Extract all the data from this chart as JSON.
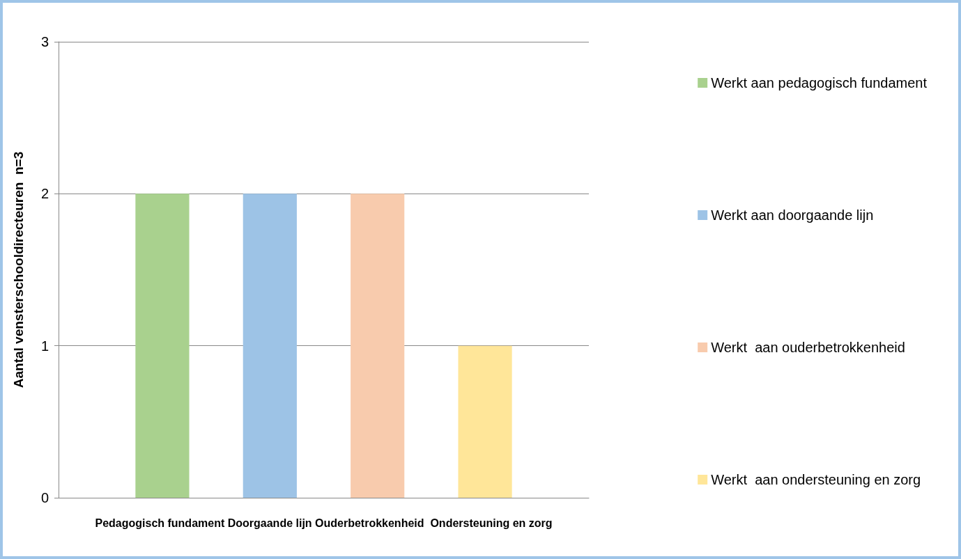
{
  "chart_data": {
    "type": "bar",
    "categories": [
      "Pedagogisch fundament Doorgaande lijn Ouderbetrokkenheid  Ondersteuning en zorg"
    ],
    "ylabel": "Aantal vensterschooldirecteuren  n=3",
    "series": [
      {
        "name": "Werkt aan pedagogisch fundament",
        "color": "#a9d18e",
        "values": [
          2
        ]
      },
      {
        "name": "Werkt aan doorgaande lijn",
        "color": "#9dc3e6",
        "values": [
          2
        ]
      },
      {
        "name": "Werkt  aan ouderbetrokkenheid",
        "color": "#f8cbad",
        "values": [
          2
        ]
      },
      {
        "name": "Werkt  aan ondersteuning en zorg",
        "color": "#ffe699",
        "values": [
          1
        ]
      }
    ],
    "ylim": [
      0,
      3
    ],
    "yticks": [
      0,
      1,
      2,
      3
    ],
    "grid": "y",
    "legend": "right"
  }
}
